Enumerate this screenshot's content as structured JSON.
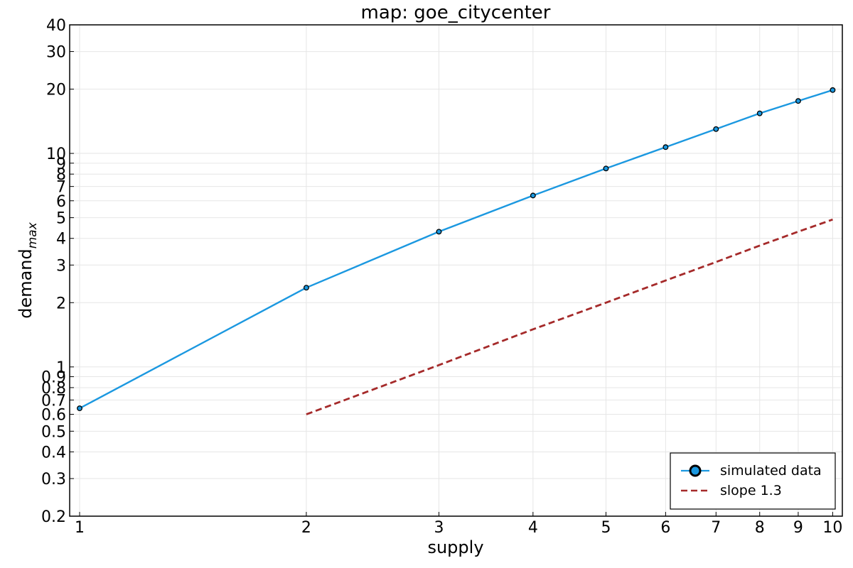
{
  "chart_data": {
    "type": "line",
    "title": "map: goe_citycenter",
    "xlabel": "supply",
    "ylabel_main": "demand",
    "ylabel_sub": "max",
    "x_scale": "log",
    "y_scale": "log",
    "xlim": [
      0.97,
      10.3
    ],
    "ylim": [
      0.2,
      40
    ],
    "x_ticks": [
      1,
      2,
      3,
      4,
      5,
      6,
      7,
      8,
      9,
      10
    ],
    "y_ticks": [
      0.2,
      0.3,
      0.4,
      0.5,
      0.6,
      0.7,
      0.8,
      0.9,
      1,
      2,
      3,
      4,
      5,
      6,
      7,
      8,
      9,
      10,
      20,
      30,
      40
    ],
    "grid": true,
    "legend_position": "bottom-right",
    "series": [
      {
        "name": "simulated data",
        "color": "#1b98e0",
        "style": "solid-with-markers",
        "x": [
          1,
          2,
          3,
          4,
          5,
          6,
          7,
          8,
          9,
          10
        ],
        "y": [
          0.64,
          2.35,
          4.3,
          6.35,
          8.5,
          10.7,
          13.0,
          15.4,
          17.6,
          19.8
        ]
      },
      {
        "name": "slope 1.3",
        "color": "#a52a2a",
        "style": "dashed",
        "x": [
          2,
          3,
          4,
          5,
          6,
          7,
          8,
          9,
          10
        ],
        "y": [
          0.6,
          1.02,
          1.5,
          2.0,
          2.54,
          3.1,
          3.7,
          4.3,
          4.9
        ]
      }
    ]
  }
}
